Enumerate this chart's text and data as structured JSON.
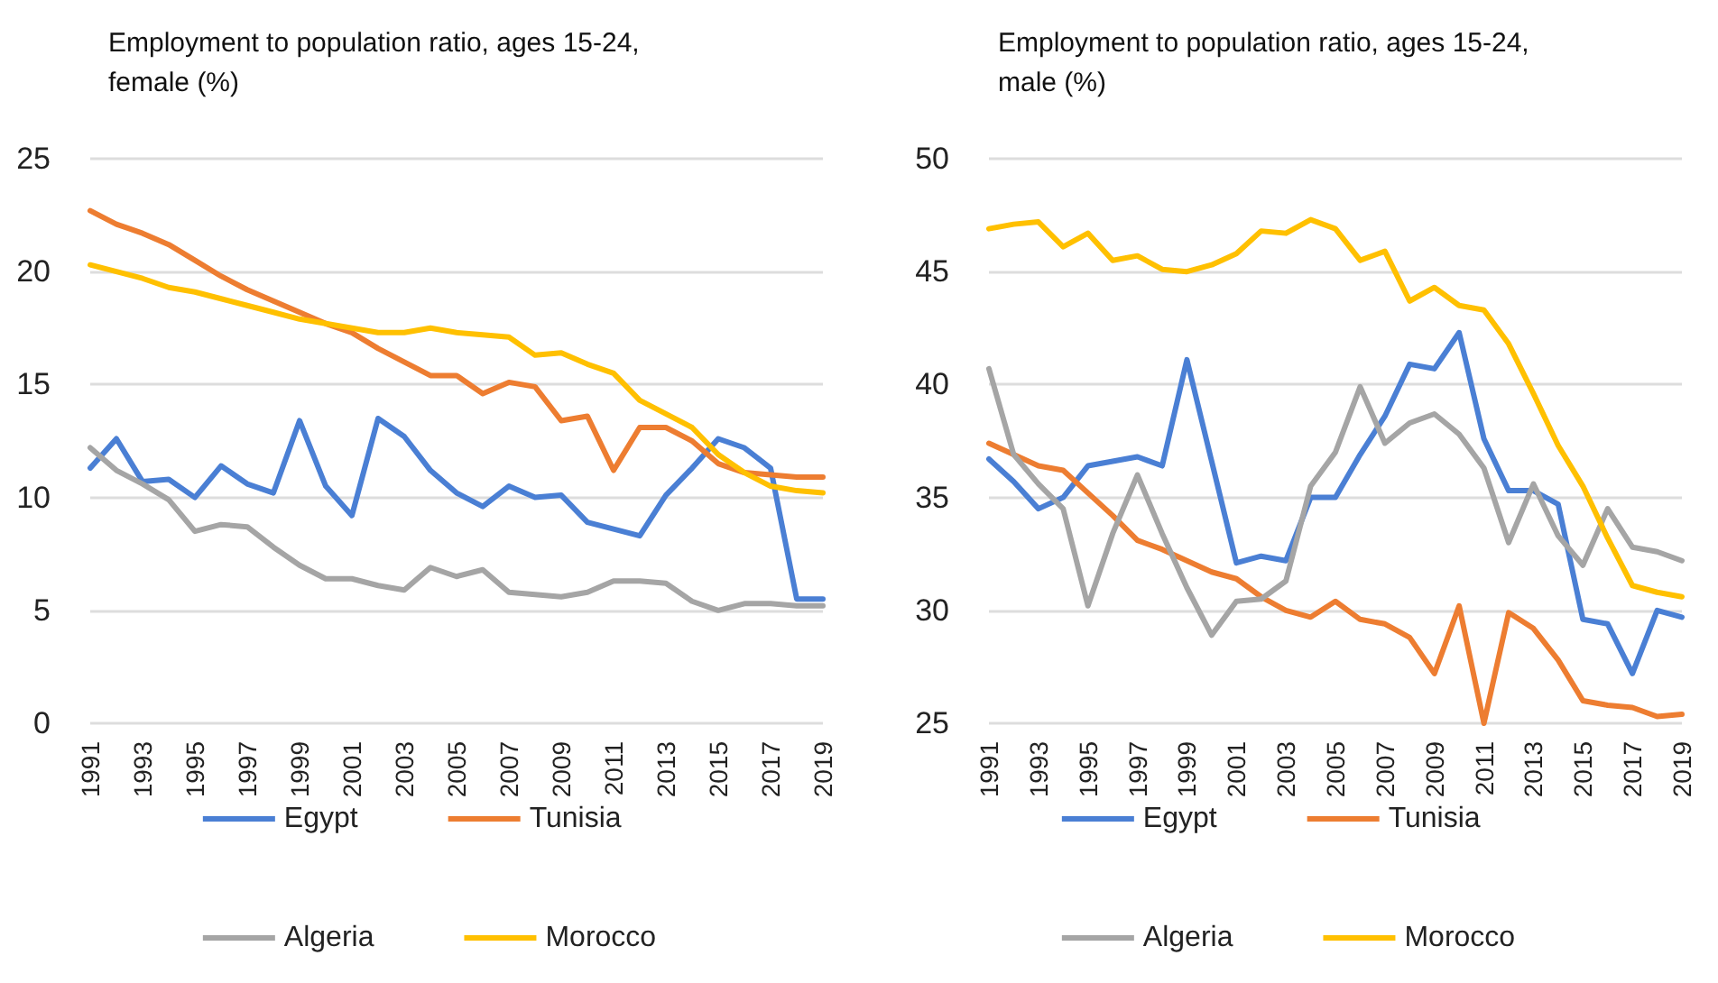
{
  "chart_data": [
    {
      "type": "line",
      "title": "Employment to population ratio, ages 15-24, female (%)",
      "categories": [
        "1991",
        null,
        "1993",
        null,
        "1995",
        null,
        "1997",
        null,
        "1999",
        null,
        "2001",
        null,
        "2003",
        null,
        "2005",
        null,
        "2007",
        null,
        "2009",
        null,
        "2011",
        null,
        "2013",
        null,
        "2015",
        null,
        "2017",
        null,
        "2019"
      ],
      "series": [
        {
          "name": "Egypt",
          "color": "#4a7fd4",
          "values": [
            11.3,
            12.6,
            10.7,
            10.8,
            10.0,
            11.4,
            10.6,
            10.2,
            13.4,
            10.5,
            9.2,
            13.5,
            12.7,
            11.2,
            10.2,
            9.6,
            10.5,
            10.0,
            10.1,
            8.9,
            8.6,
            8.3,
            10.1,
            11.3,
            12.6,
            12.2,
            11.3,
            5.5,
            5.5
          ]
        },
        {
          "name": "Tunisia",
          "color": "#ed7d31",
          "values": [
            22.7,
            22.1,
            21.7,
            21.2,
            20.5,
            19.8,
            19.2,
            18.7,
            18.2,
            17.7,
            17.3,
            16.6,
            16.0,
            15.4,
            15.4,
            14.6,
            15.1,
            14.9,
            13.4,
            13.6,
            11.2,
            13.1,
            13.1,
            12.5,
            11.5,
            11.1,
            11.0,
            10.9,
            10.9
          ]
        },
        {
          "name": "Algeria",
          "color": "#a5a5a5",
          "values": [
            12.2,
            11.2,
            10.6,
            9.9,
            8.5,
            8.8,
            8.7,
            7.8,
            7.0,
            6.4,
            6.4,
            6.1,
            5.9,
            6.9,
            6.5,
            6.8,
            5.8,
            5.7,
            5.6,
            5.8,
            6.3,
            6.3,
            6.2,
            5.4,
            5.0,
            5.3,
            5.3,
            5.2,
            5.2
          ]
        },
        {
          "name": "Morocco",
          "color": "#ffc000",
          "values": [
            20.3,
            20.0,
            19.7,
            19.3,
            19.1,
            18.8,
            18.5,
            18.2,
            17.9,
            17.7,
            17.5,
            17.3,
            17.3,
            17.5,
            17.3,
            17.2,
            17.1,
            16.3,
            16.4,
            15.9,
            15.5,
            14.3,
            13.7,
            13.1,
            11.9,
            11.1,
            10.5,
            10.3,
            10.2
          ]
        }
      ],
      "ylim": [
        0,
        25
      ],
      "yticks": [
        0,
        5,
        10,
        15,
        20,
        25
      ],
      "grid": "y",
      "legend": "bottom",
      "marker": "none",
      "line_style": "solid"
    },
    {
      "type": "line",
      "title": "Employment to population ratio, ages 15-24, male (%)",
      "categories": [
        "1991",
        null,
        "1993",
        null,
        "1995",
        null,
        "1997",
        null,
        "1999",
        null,
        "2001",
        null,
        "2003",
        null,
        "2005",
        null,
        "2007",
        null,
        "2009",
        null,
        "2011",
        null,
        "2013",
        null,
        "2015",
        null,
        "2017",
        null,
        "2019"
      ],
      "series": [
        {
          "name": "Egypt",
          "color": "#4a7fd4",
          "values": [
            36.7,
            35.7,
            34.5,
            35.0,
            36.4,
            36.6,
            36.8,
            36.4,
            41.1,
            36.6,
            32.1,
            32.4,
            32.2,
            35.0,
            35.0,
            36.9,
            38.6,
            40.9,
            40.7,
            42.3,
            37.6,
            35.3,
            35.3,
            34.7,
            29.6,
            29.4,
            27.2,
            30.0,
            29.7
          ]
        },
        {
          "name": "Tunisia",
          "color": "#ed7d31",
          "values": [
            37.4,
            36.9,
            36.4,
            36.2,
            35.2,
            34.2,
            33.1,
            32.7,
            32.2,
            31.7,
            31.4,
            30.6,
            30.0,
            29.7,
            30.4,
            29.6,
            29.4,
            28.8,
            27.2,
            30.2,
            25.0,
            29.9,
            29.2,
            27.8,
            26.0,
            25.8,
            25.7,
            25.3,
            25.4
          ]
        },
        {
          "name": "Algeria",
          "color": "#a5a5a5",
          "values": [
            40.7,
            36.9,
            35.6,
            34.5,
            30.2,
            33.4,
            36.0,
            33.4,
            31.0,
            28.9,
            30.4,
            30.5,
            31.3,
            35.5,
            37.0,
            39.9,
            37.4,
            38.3,
            38.7,
            37.8,
            36.3,
            33.0,
            35.6,
            33.3,
            32.0,
            34.5,
            32.8,
            32.6,
            32.2
          ]
        },
        {
          "name": "Morocco",
          "color": "#ffc000",
          "values": [
            46.9,
            47.1,
            47.2,
            46.1,
            46.7,
            45.5,
            45.7,
            45.1,
            45.0,
            45.3,
            45.8,
            46.8,
            46.7,
            47.3,
            46.9,
            45.5,
            45.9,
            43.7,
            44.3,
            43.5,
            43.3,
            41.8,
            39.6,
            37.3,
            35.5,
            33.2,
            31.1,
            30.8,
            30.6
          ]
        }
      ],
      "ylim": [
        25,
        50
      ],
      "yticks": [
        25,
        30,
        35,
        40,
        45,
        50
      ],
      "grid": "y",
      "legend": "bottom",
      "marker": "none",
      "line_style": "solid"
    }
  ]
}
